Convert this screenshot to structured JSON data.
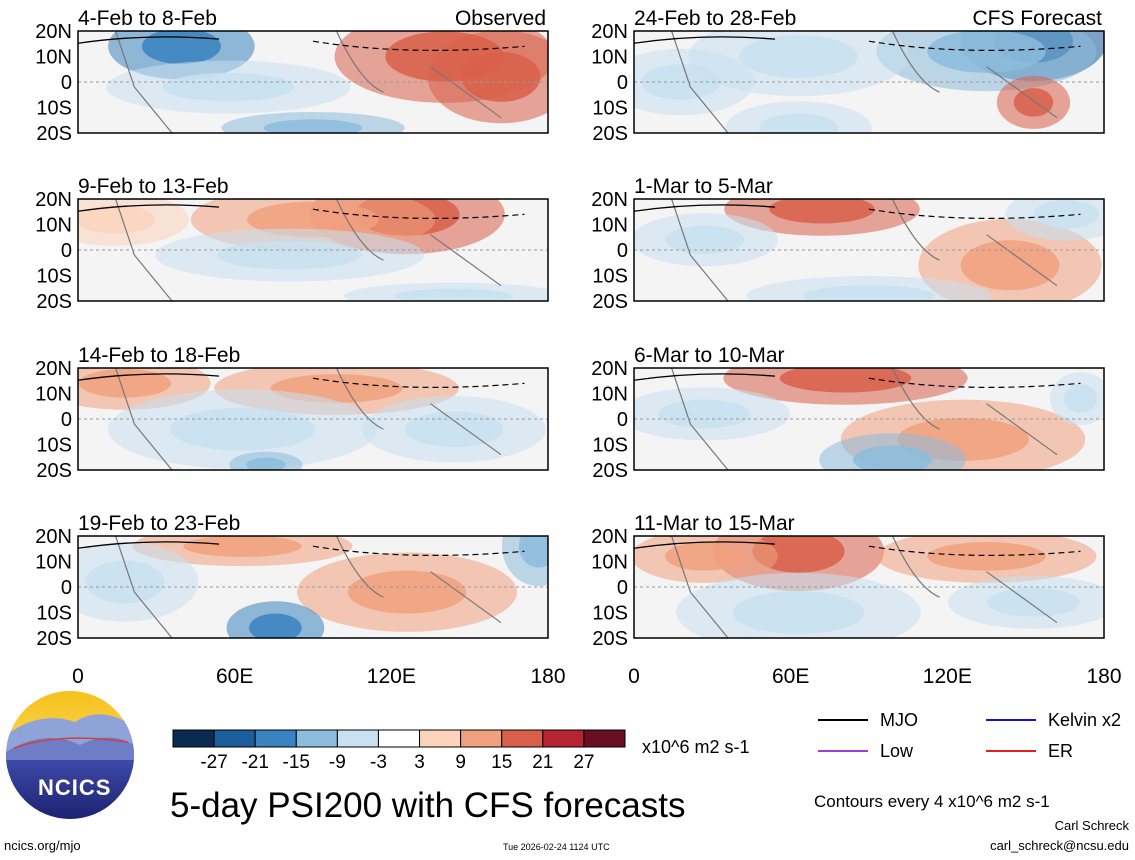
{
  "page": {
    "background": "#ffffff"
  },
  "chart_data": {
    "type": "heatmap",
    "variable": "PSI200",
    "title": "5-day PSI200 with CFS forecasts",
    "units": "x10^6 m2 s-1",
    "contour_note": "Contours every 4 x10^6 m2 s-1",
    "x_ticks": [
      "0",
      "60E",
      "120E",
      "180"
    ],
    "x_range": [
      0,
      180
    ],
    "y_ticks": [
      "20N",
      "10N",
      "0",
      "10S",
      "20S"
    ],
    "y_range": [
      -20,
      20
    ],
    "columns": [
      {
        "label": "Observed",
        "panels": [
          "4-Feb to 8-Feb",
          "9-Feb to 13-Feb",
          "14-Feb to 18-Feb",
          "19-Feb to 23-Feb"
        ]
      },
      {
        "label": "CFS Forecast",
        "panels": [
          "24-Feb to 28-Feb",
          "1-Mar to 5-Mar",
          "6-Mar to 10-Mar",
          "11-Mar to 15-Mar"
        ]
      }
    ],
    "colorbar": {
      "tick_labels": [
        "-27",
        "-21",
        "-15",
        "-9",
        "-3",
        "3",
        "9",
        "15",
        "21",
        "27"
      ],
      "colors": [
        "#0a2a52",
        "#1c5e9c",
        "#3a83c0",
        "#8cbcdc",
        "#c8e0f0",
        "#ffffff",
        "#fcd4bc",
        "#f1a07e",
        "#d8604a",
        "#b52430",
        "#6a0f22"
      ]
    },
    "legend": [
      {
        "label": "MJO",
        "color": "#000000"
      },
      {
        "label": "Kelvin x2",
        "color": "#1010ee"
      },
      {
        "label": "Low",
        "color": "#9b3fd8"
      },
      {
        "label": "ER",
        "color": "#e02020"
      }
    ]
  },
  "footer": {
    "site": "ncics.org/mjo",
    "timestamp": "Tue 2026-02-24 1124 UTC",
    "author": "Carl Schreck",
    "email": "carl_schreck@ncsu.edu"
  },
  "logo": {
    "text": "NCICS"
  }
}
